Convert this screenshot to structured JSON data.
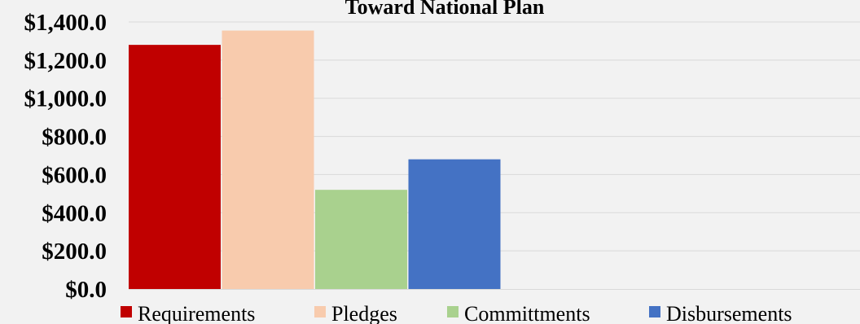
{
  "chart_data": {
    "type": "bar",
    "title": "Toward National Plan",
    "xlabel": "",
    "ylabel": "",
    "ylim": [
      0,
      1400
    ],
    "y_ticks": [
      0,
      200,
      400,
      600,
      800,
      1000,
      1200,
      1400
    ],
    "y_tick_labels": [
      "$0.0",
      "$200.0",
      "$400.0",
      "$600.0",
      "$800.0",
      "$1,000.0",
      "$1,200.0",
      "$1,400.0"
    ],
    "grid": true,
    "legend_position": "bottom",
    "series": [
      {
        "name": "Requirements",
        "value": 1280,
        "color": "#c00000"
      },
      {
        "name": "Pledges",
        "value": 1355,
        "color": "#f8cbad"
      },
      {
        "name": "Committments",
        "value": 520,
        "color": "#a9d18e"
      },
      {
        "name": "Disbursements",
        "value": 680,
        "color": "#4472c4"
      }
    ]
  },
  "background_color": "#f2f2f2",
  "gridline_color": "#d9d9d9"
}
